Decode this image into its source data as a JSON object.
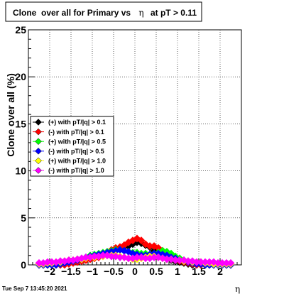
{
  "title_prefix": "Clone  over all for Primary vs",
  "title_eta": "η",
  "title_suffix": "at pT > 0.11",
  "footer_timestamp": "Tue Sep  7 13:45:20 2021",
  "chart_data": {
    "type": "scatter",
    "xlabel": "η",
    "ylabel": "Clone  over all (%)",
    "xlim": [
      -2.5,
      2.5
    ],
    "ylim": [
      0,
      25
    ],
    "x_ticks": [
      -2,
      -1.5,
      -1,
      -0.5,
      0,
      0.5,
      1,
      1.5,
      2
    ],
    "x_tick_labels": [
      "−2",
      "−1.5",
      "−1",
      "−0.5",
      "0",
      "0.5",
      "1",
      "1.5",
      "2"
    ],
    "y_ticks": [
      0,
      5,
      10,
      15,
      20,
      25
    ],
    "y_tick_labels": [
      "0",
      "5",
      "10",
      "15",
      "20",
      "25"
    ],
    "grid": true,
    "legend_position": "left-middle",
    "x": [
      -2.25,
      -2.15,
      -2.05,
      -1.95,
      -1.85,
      -1.75,
      -1.65,
      -1.55,
      -1.45,
      -1.35,
      -1.25,
      -1.15,
      -1.05,
      -0.95,
      -0.85,
      -0.75,
      -0.65,
      -0.55,
      -0.45,
      -0.35,
      -0.25,
      -0.15,
      -0.05,
      0.05,
      0.15,
      0.25,
      0.35,
      0.45,
      0.55,
      0.65,
      0.75,
      0.85,
      0.95,
      1.05,
      1.15,
      1.25,
      1.35,
      1.45,
      1.55,
      1.65,
      1.75,
      1.85,
      1.95,
      2.05,
      2.15,
      2.25
    ],
    "series": [
      {
        "name": "(+) with pT/|q| > 0.1",
        "color": "#000000",
        "values": [
          0,
          0,
          0,
          0,
          0,
          0,
          0.1,
          0.2,
          0.3,
          0.4,
          0.5,
          0.6,
          0.7,
          0.8,
          0.9,
          1.0,
          1.2,
          1.4,
          1.6,
          1.8,
          1.9,
          2.0,
          2.2,
          2.4,
          2.3,
          2.1,
          1.9,
          1.5,
          1.1,
          0.8,
          0.6,
          0.5,
          0.4,
          0.3,
          0.2,
          0.1,
          0,
          0,
          0,
          0,
          0,
          0,
          0,
          0,
          0,
          0
        ]
      },
      {
        "name": "(-) with pT/|q| > 0.1",
        "color": "#ff0000",
        "values": [
          0,
          0,
          0,
          0,
          0,
          0,
          0,
          0.1,
          0.2,
          0.3,
          0.4,
          0.5,
          0.6,
          0.7,
          0.8,
          1.0,
          1.3,
          1.6,
          1.8,
          1.9,
          2.1,
          2.4,
          2.6,
          2.8,
          2.6,
          2.2,
          2.0,
          2.0,
          1.8,
          1.5,
          1.2,
          0.9,
          0.6,
          0.4,
          0.3,
          0.2,
          0.1,
          0,
          0,
          0,
          0,
          0,
          0,
          0,
          0,
          0
        ]
      },
      {
        "name": "(+) with pT/|q| > 0.5",
        "color": "#00ff00",
        "values": [
          0,
          0,
          0,
          0,
          0,
          0.1,
          0.2,
          0.3,
          0.4,
          0.5,
          0.6,
          0.8,
          1.0,
          1.1,
          1.2,
          1.3,
          1.4,
          1.5,
          1.6,
          1.6,
          1.5,
          1.4,
          1.3,
          1.3,
          1.2,
          1.2,
          1.1,
          1.2,
          1.3,
          1.5,
          1.4,
          1.2,
          0.9,
          0.7,
          0.5,
          0.4,
          0.3,
          0.2,
          0.1,
          0,
          0,
          0,
          0,
          0,
          0,
          0
        ]
      },
      {
        "name": "(-) with pT/|q| > 0.5",
        "color": "#0000ff",
        "values": [
          0,
          0,
          0,
          0,
          0,
          0.1,
          0.2,
          0.3,
          0.4,
          0.5,
          0.6,
          0.8,
          0.9,
          1.0,
          1.1,
          1.2,
          1.3,
          1.4,
          1.5,
          1.6,
          1.5,
          1.4,
          1.2,
          1.1,
          1.0,
          1.0,
          1.1,
          1.2,
          1.2,
          1.1,
          1.0,
          0.8,
          0.7,
          0.5,
          0.4,
          0.3,
          0.2,
          0.1,
          0.1,
          0,
          0,
          0,
          0,
          0,
          0,
          0
        ]
      },
      {
        "name": "(+) with pT/|q| > 1.0",
        "color": "#ffff00",
        "values": [
          0.1,
          0.1,
          0.2,
          0.2,
          0.3,
          0.3,
          0.4,
          0.5,
          0.5,
          0.6,
          0.6,
          0.7,
          0.8,
          0.8,
          0.9,
          0.9,
          1.0,
          1.0,
          1.0,
          0.9,
          0.8,
          0.7,
          0.6,
          0.6,
          0.7,
          0.8,
          0.9,
          0.9,
          0.8,
          0.7,
          0.6,
          0.6,
          0.5,
          0.5,
          0.4,
          0.4,
          0.3,
          0.3,
          0.3,
          0.2,
          0.2,
          0.1,
          0.1,
          0.1,
          0.1,
          0.1
        ]
      },
      {
        "name": "(-) with pT/|q| > 1.0",
        "color": "#ff00ff",
        "values": [
          0.2,
          0.2,
          0.3,
          0.3,
          0.3,
          0.4,
          0.4,
          0.5,
          0.5,
          0.6,
          0.7,
          0.8,
          0.8,
          0.9,
          0.9,
          1.0,
          1.0,
          0.9,
          0.9,
          0.8,
          0.8,
          0.7,
          0.7,
          0.8,
          0.8,
          0.7,
          0.7,
          0.8,
          0.8,
          0.7,
          0.6,
          0.6,
          0.5,
          0.5,
          0.5,
          0.4,
          0.4,
          0.3,
          0.3,
          0.3,
          0.3,
          0.3,
          0.2,
          0.2,
          0.2,
          0.2
        ]
      }
    ]
  }
}
